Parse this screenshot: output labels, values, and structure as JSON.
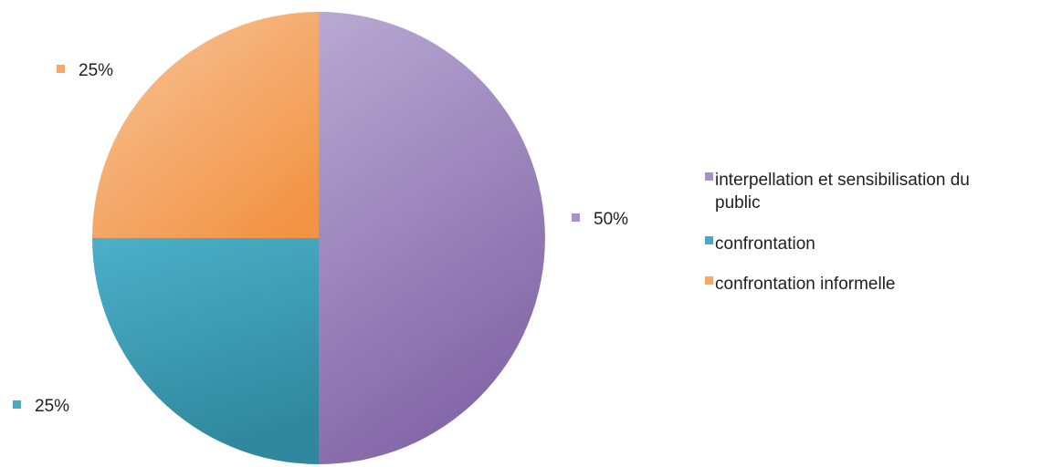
{
  "chart_data": {
    "type": "pie",
    "title": "",
    "categories": [
      "interpellation et sensibilisation du public",
      "confrontation",
      "confrontation informelle"
    ],
    "values": [
      50,
      25,
      25
    ],
    "data_labels": [
      "50%",
      "25%",
      "25%"
    ],
    "colors": [
      "#a493c4",
      "#4aa8c0",
      "#f4a86a"
    ],
    "legend": {
      "position": "right",
      "entries": [
        {
          "lines": [
            "interpellation et sensibilisation du",
            "public"
          ]
        },
        {
          "lines": [
            "confrontation"
          ]
        },
        {
          "lines": [
            "confrontation informelle"
          ]
        }
      ]
    }
  }
}
